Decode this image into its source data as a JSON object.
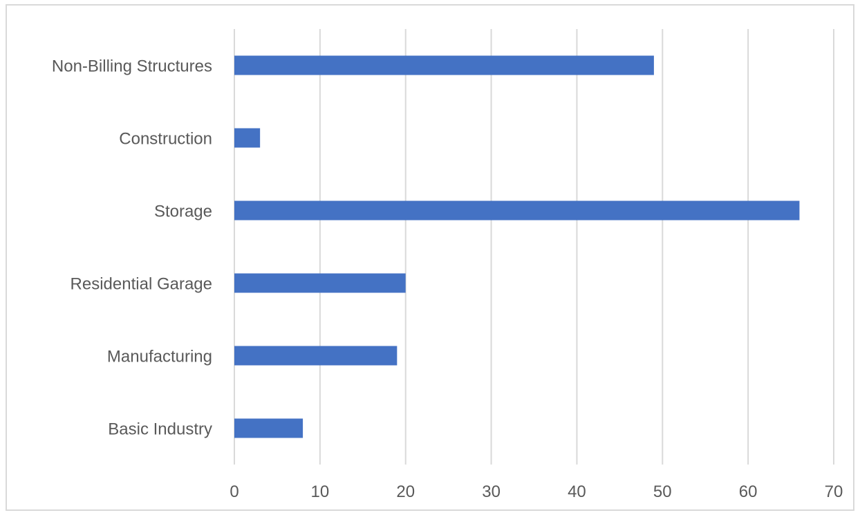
{
  "chart_data": {
    "type": "bar",
    "orientation": "horizontal",
    "categories": [
      "Basic Industry",
      "Manufacturing",
      "Residential Garage",
      "Storage",
      "Construction",
      "Non-Billing Structures"
    ],
    "values": [
      8,
      19,
      20,
      66,
      3,
      49
    ],
    "xlim": [
      0,
      70
    ],
    "xticks": [
      "0",
      "10",
      "20",
      "30",
      "40",
      "50",
      "60",
      "70"
    ],
    "grid": true,
    "legend": "none",
    "bar_color": "#4472C4",
    "grid_color": "#d9d9d9"
  }
}
